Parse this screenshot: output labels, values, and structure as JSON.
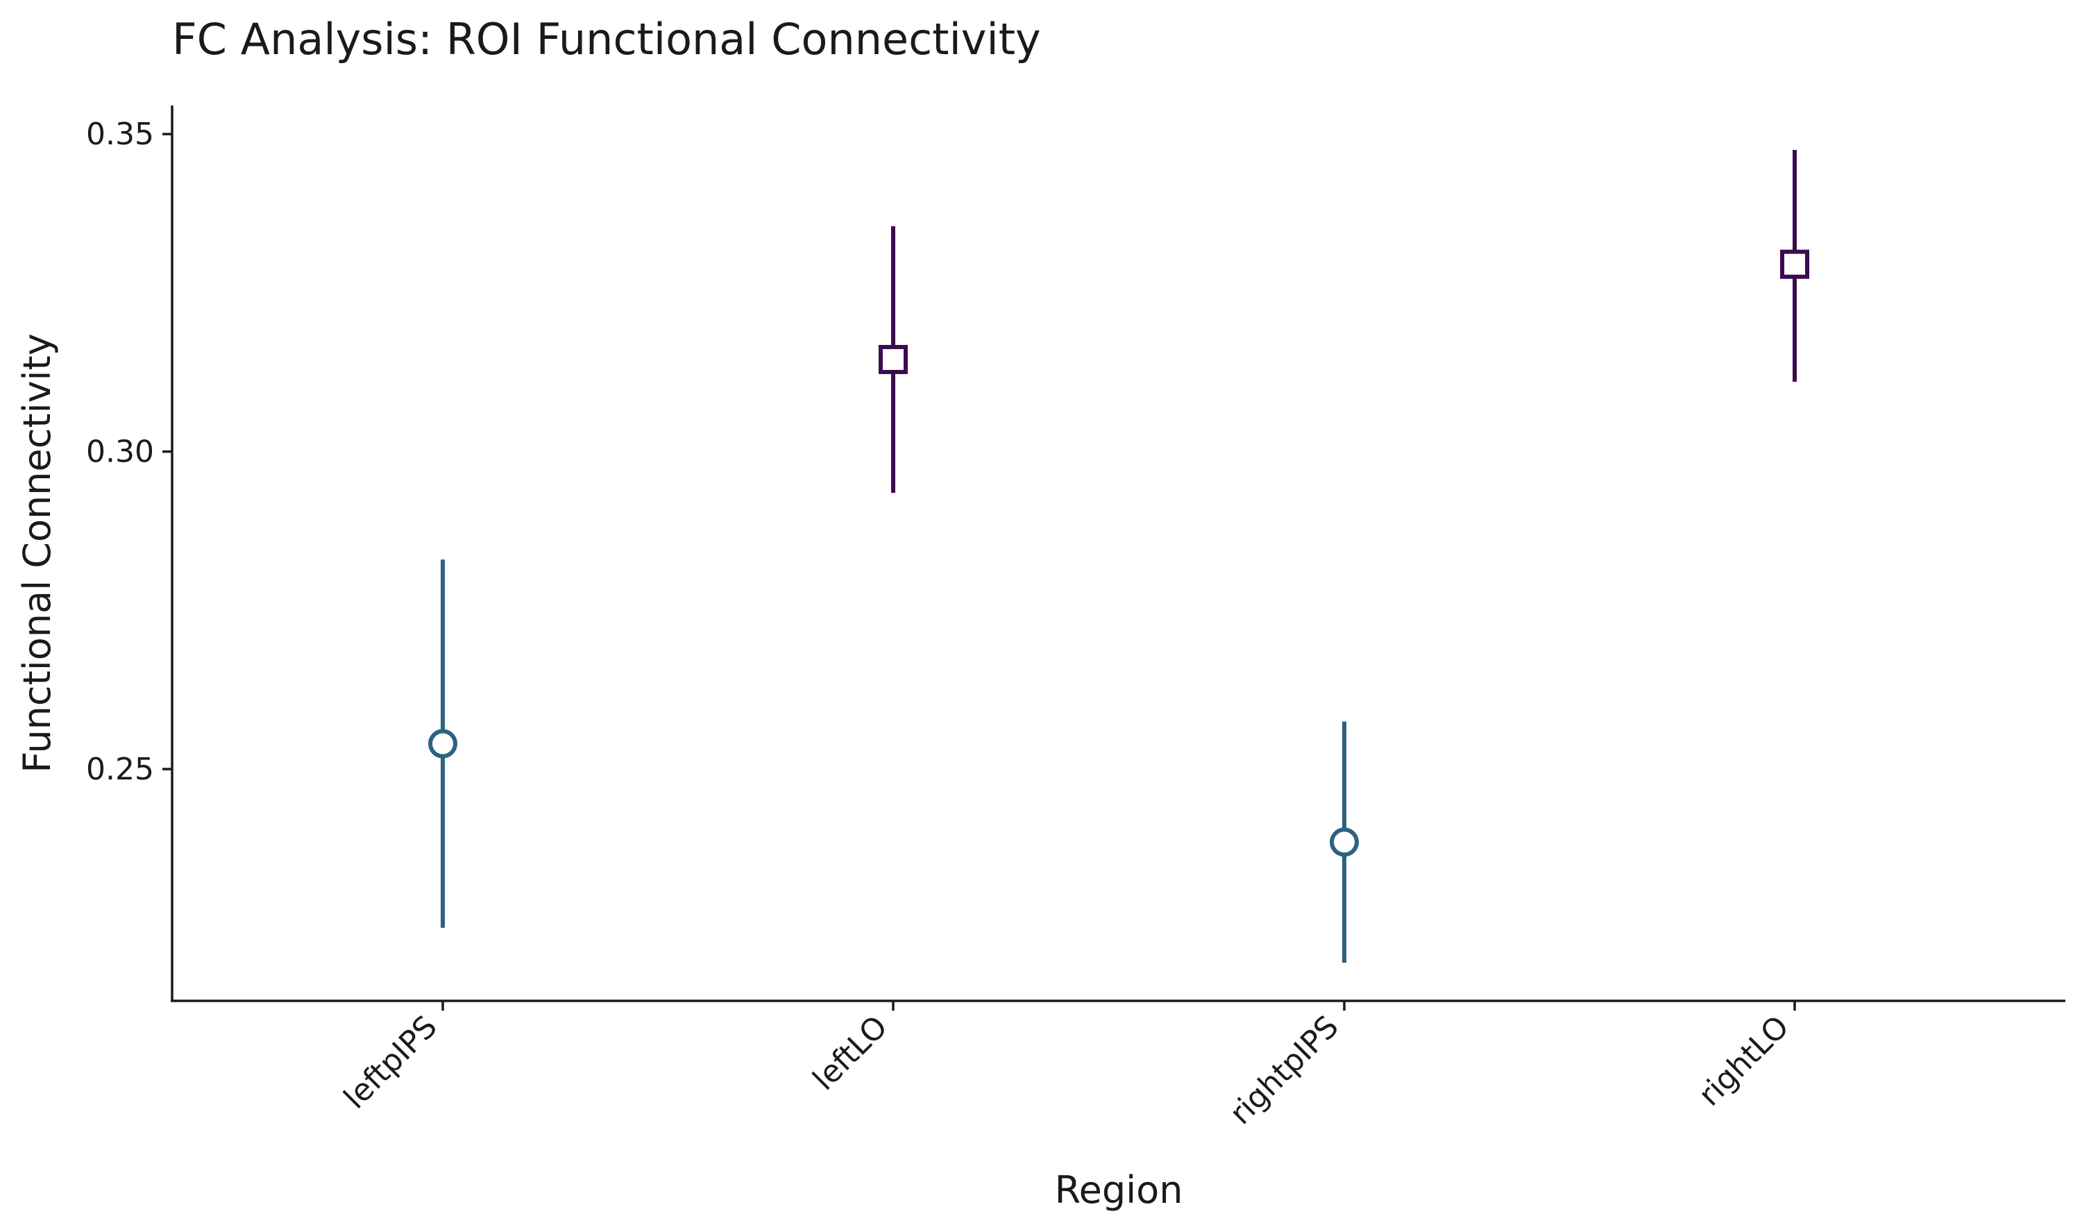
{
  "chart_data": {
    "type": "scatter",
    "title": "FC Analysis: ROI Functional Connectivity",
    "xlabel": "Region",
    "ylabel": "Functional Connectivity",
    "categories": [
      "leftpIPS",
      "leftLO",
      "rightpIPS",
      "rightLO"
    ],
    "ylim": [
      0.2135,
      0.3545
    ],
    "yticks": [
      0.25,
      0.3,
      0.35
    ],
    "ytick_labels": [
      "0.25",
      "0.30",
      "0.35"
    ],
    "grid": false,
    "points": [
      {
        "category": "leftpIPS",
        "y": 0.254,
        "ci_low": 0.225,
        "ci_high": 0.283,
        "marker": "circle",
        "color": "#2c6184"
      },
      {
        "category": "leftLO",
        "y": 0.3145,
        "ci_low": 0.2935,
        "ci_high": 0.3355,
        "marker": "square",
        "color": "#3d0a4f"
      },
      {
        "category": "rightpIPS",
        "y": 0.2385,
        "ci_low": 0.2195,
        "ci_high": 0.2575,
        "marker": "circle",
        "color": "#2c6184"
      },
      {
        "category": "rightLO",
        "y": 0.3295,
        "ci_low": 0.311,
        "ci_high": 0.3475,
        "marker": "square",
        "color": "#3d0a4f"
      }
    ]
  }
}
